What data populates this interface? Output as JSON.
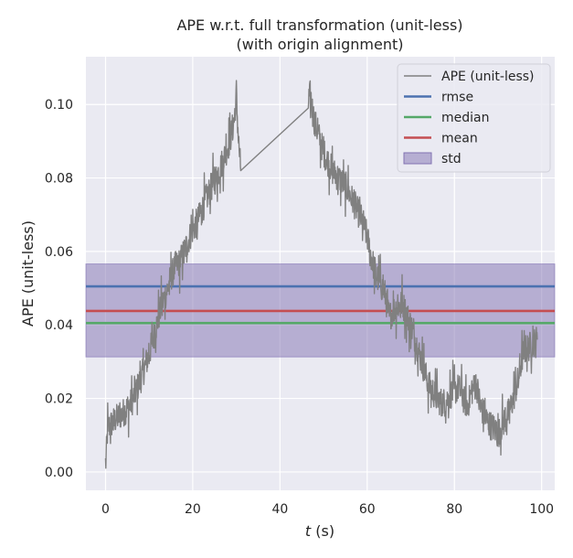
{
  "chart_data": {
    "type": "line",
    "title": "APE w.r.t. full transformation (unit-less)",
    "subtitle": "(with origin alignment)",
    "xlabel_italic": "t",
    "xlabel_rest": " (s)",
    "ylabel": "APE (unit-less)",
    "xlim": [
      -4.5,
      103
    ],
    "ylim": [
      -0.005,
      0.113
    ],
    "xticks": [
      0,
      20,
      40,
      60,
      80,
      100
    ],
    "yticks": [
      0.0,
      0.02,
      0.04,
      0.06,
      0.08,
      0.1
    ],
    "ytick_labels": [
      "0.00",
      "0.02",
      "0.04",
      "0.06",
      "0.08",
      "0.10"
    ],
    "grid": true,
    "legend_position": "top-right",
    "colors": {
      "background": "#eaeaf2",
      "grid": "#ffffff",
      "ape": "#808080",
      "rmse": "#4c72b0",
      "median": "#55a868",
      "mean": "#c44e52",
      "std_fill": "#8172b2"
    },
    "series": [
      {
        "name": "APE (unit-less)",
        "noise": 0.004,
        "x": [
          0,
          0.5,
          2,
          4,
          6,
          8,
          10,
          11.5,
          13,
          14,
          15,
          16,
          17,
          18,
          19,
          20,
          21,
          22,
          23,
          24,
          25,
          27,
          28.5,
          29.5,
          30,
          30.5,
          31,
          46.5,
          47,
          47.5,
          48,
          50,
          52,
          55,
          57,
          59,
          60,
          61,
          62,
          63,
          64,
          65,
          66,
          67,
          68,
          69,
          70,
          71,
          72,
          73,
          74,
          75,
          76,
          77,
          78,
          79,
          80,
          81,
          82,
          83,
          84,
          85,
          86,
          87,
          88,
          89,
          90,
          91,
          92,
          93,
          94,
          95,
          95.5,
          96,
          97,
          98,
          99
        ],
        "y": [
          0.001,
          0.012,
          0.014,
          0.016,
          0.019,
          0.025,
          0.032,
          0.039,
          0.046,
          0.049,
          0.053,
          0.056,
          0.057,
          0.06,
          0.063,
          0.066,
          0.068,
          0.071,
          0.074,
          0.077,
          0.079,
          0.085,
          0.09,
          0.096,
          0.102,
          0.09,
          0.082,
          0.101,
          0.103,
          0.098,
          0.095,
          0.087,
          0.082,
          0.078,
          0.073,
          0.068,
          0.064,
          0.058,
          0.054,
          0.051,
          0.049,
          0.042,
          0.044,
          0.045,
          0.046,
          0.043,
          0.04,
          0.036,
          0.032,
          0.028,
          0.024,
          0.022,
          0.02,
          0.019,
          0.019,
          0.021,
          0.022,
          0.023,
          0.02,
          0.018,
          0.022,
          0.024,
          0.018,
          0.015,
          0.013,
          0.012,
          0.01,
          0.013,
          0.015,
          0.018,
          0.022,
          0.027,
          0.031,
          0.033,
          0.034,
          0.035,
          0.036
        ]
      }
    ],
    "hlines": [
      {
        "name": "rmse",
        "value": 0.0505
      },
      {
        "name": "median",
        "value": 0.0405
      },
      {
        "name": "mean",
        "value": 0.0438
      }
    ],
    "band": {
      "name": "std",
      "lower": 0.0313,
      "upper": 0.0566
    },
    "legend": [
      {
        "label": "APE (unit-less)",
        "kind": "line",
        "color": "#808080"
      },
      {
        "label": "rmse",
        "kind": "line",
        "color": "#4c72b0"
      },
      {
        "label": "median",
        "kind": "line",
        "color": "#55a868"
      },
      {
        "label": "mean",
        "kind": "line",
        "color": "#c44e52"
      },
      {
        "label": "std",
        "kind": "patch",
        "color": "#8172b2"
      }
    ]
  }
}
